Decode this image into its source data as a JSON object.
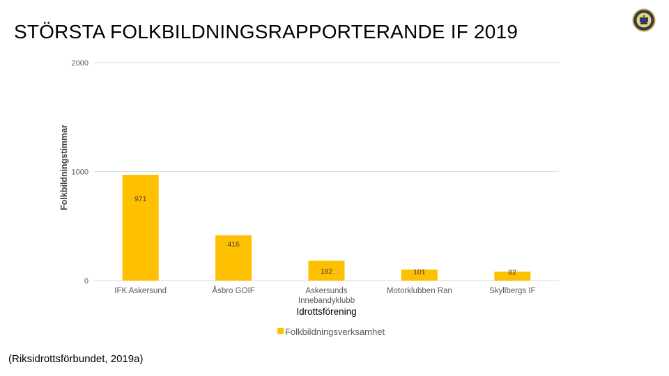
{
  "slide": {
    "title": "STÖRSTA FOLKBILDNINGSRAPPORTERANDE IF 2019",
    "source": "(Riksidrottsförbundet, 2019a)",
    "logo_icon": "crest-logo"
  },
  "chart_data": {
    "type": "bar",
    "title": "",
    "xlabel": "Idrottsförening",
    "ylabel": "Folkbildningstimmar",
    "categories": [
      "IFK Askersund",
      "Åsbro GOIF",
      "Askersunds Innebandyklubb",
      "Motorklubben Ran",
      "Skyllbergs IF"
    ],
    "series": [
      {
        "name": "Folkbildningsverksamhet",
        "values": [
          971,
          416,
          182,
          101,
          82
        ],
        "color": "#FFC000"
      }
    ],
    "ylim": [
      0,
      2000
    ],
    "yticks": [
      "0",
      "1000",
      "2000"
    ],
    "grid": true,
    "legend": "bottom"
  }
}
